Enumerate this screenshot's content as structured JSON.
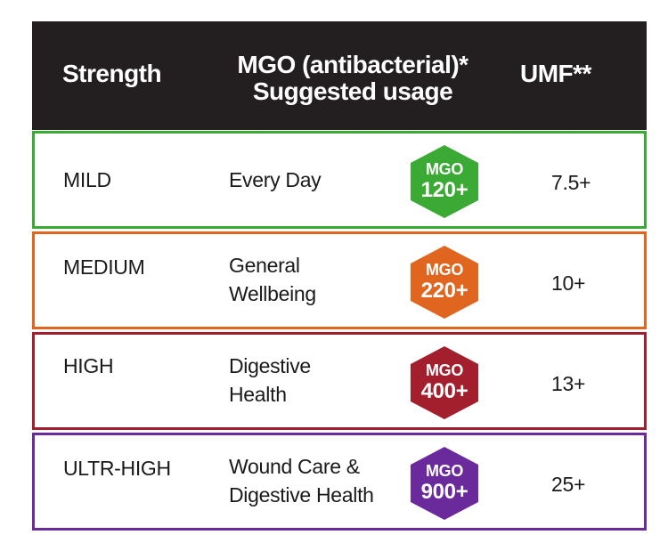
{
  "header": {
    "strength": "Strength",
    "mgo": "MGO (antibacterial)*",
    "usage": "Suggested usage",
    "umf": "UMF**"
  },
  "rows": [
    {
      "strength": "MILD",
      "usage_line1": "Every Day",
      "usage_line2": "",
      "badge_top": "MGO",
      "badge_value": "120+",
      "umf": "7.5+",
      "color": "#3aaa35"
    },
    {
      "strength": "MEDIUM",
      "usage_line1": "General",
      "usage_line2": "Wellbeing",
      "badge_top": "MGO",
      "badge_value": "220+",
      "umf": "10+",
      "color": "#e0651f"
    },
    {
      "strength": "HIGH",
      "usage_line1": "Digestive",
      "usage_line2": "Health",
      "badge_top": "MGO",
      "badge_value": "400+",
      "umf": "13+",
      "color": "#a31f2d"
    },
    {
      "strength": "ULTR-HIGH",
      "usage_line1": "Wound Care &",
      "usage_line2": "Digestive Health",
      "badge_top": "MGO",
      "badge_value": "900+",
      "umf": "25+",
      "color": "#6a2a9c"
    }
  ],
  "colors": {
    "header_bg": "#231f20",
    "header_text": "#ffffff"
  }
}
